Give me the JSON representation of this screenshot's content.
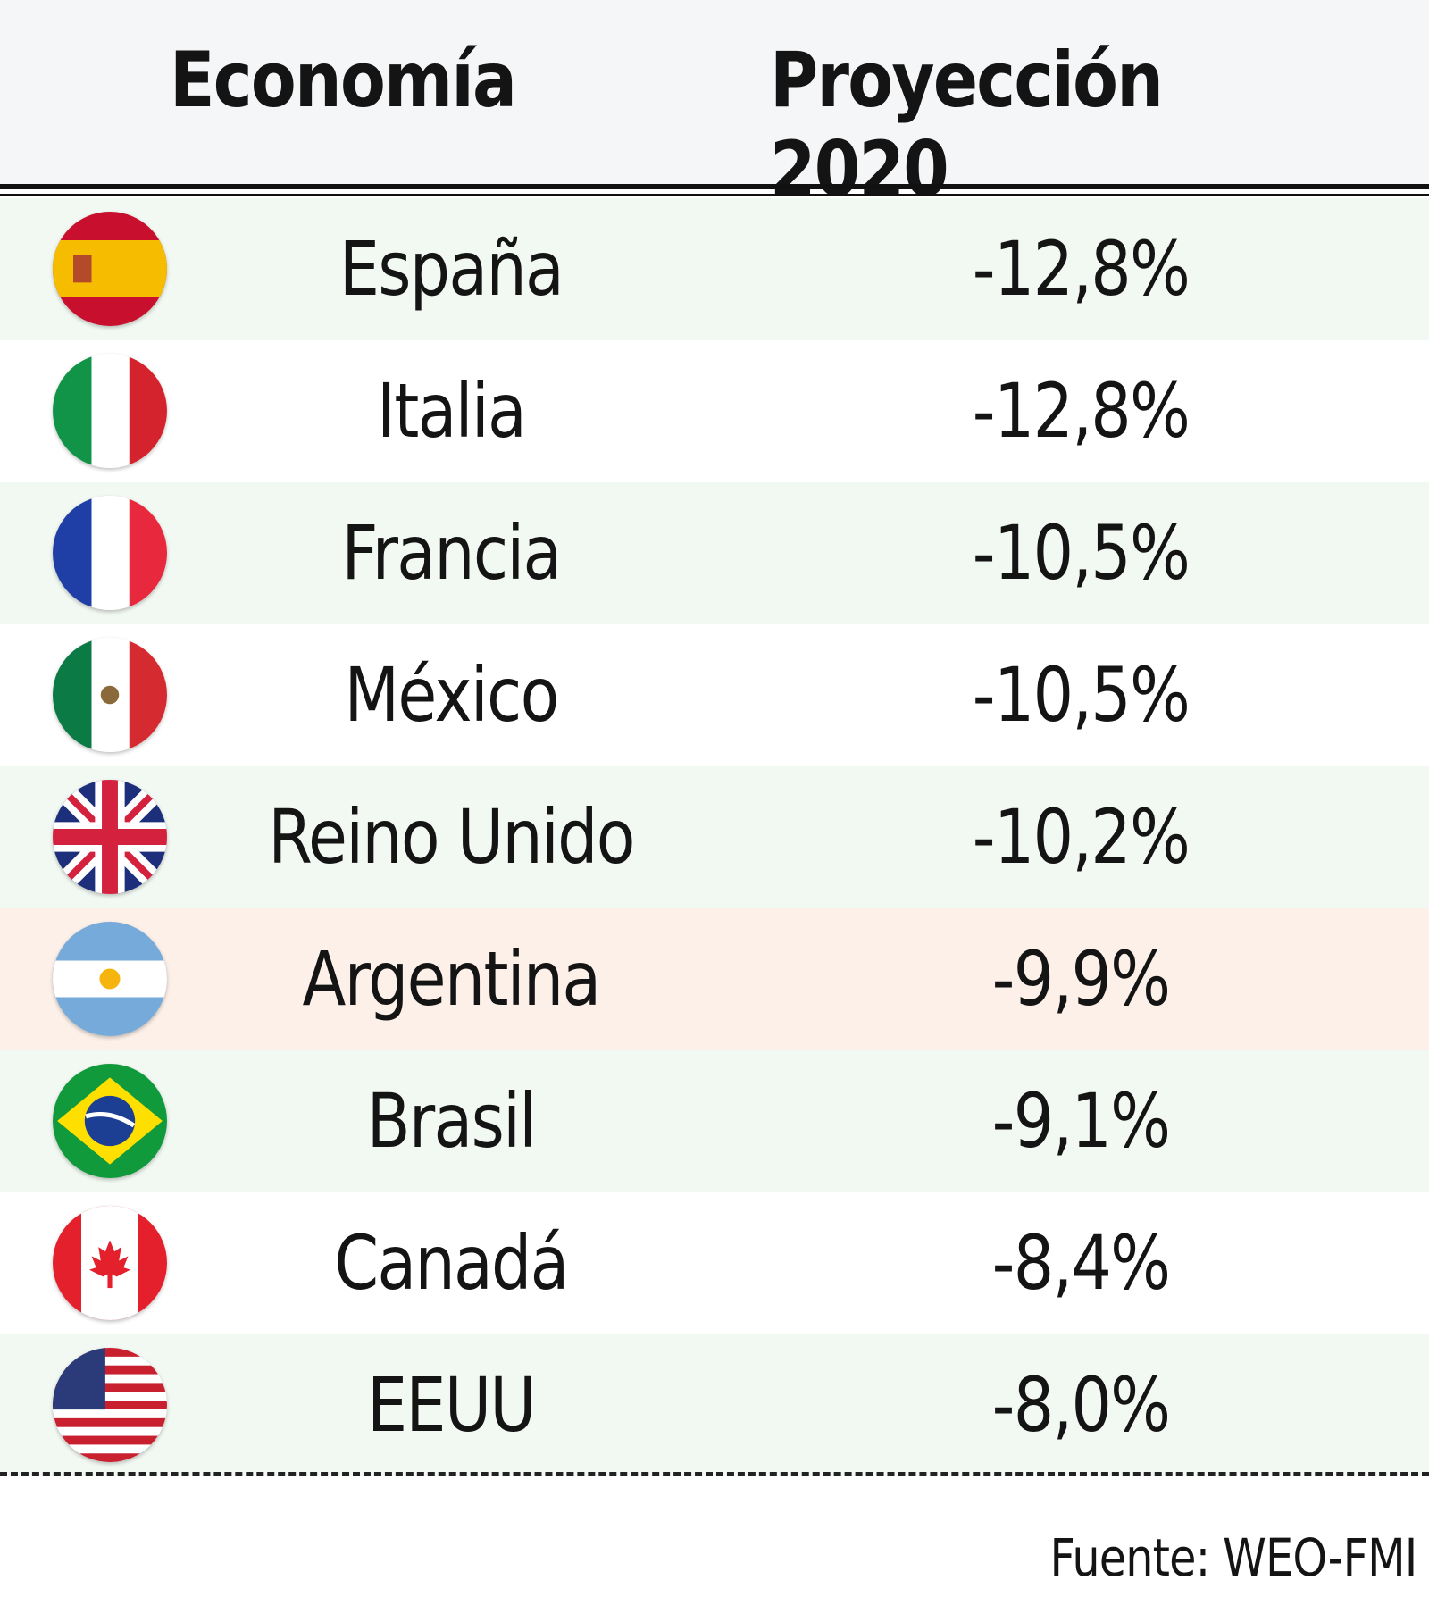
{
  "header": [
    "Economía",
    "Proyección 2020"
  ],
  "rows": [
    [
      "España",
      "-12,8%"
    ],
    [
      "Italia",
      "-12,8%"
    ],
    [
      "Francia",
      "-10,5%"
    ],
    [
      "México",
      "-10,5%"
    ],
    [
      "Reino Unido",
      "-10,2%"
    ],
    [
      "Argentina",
      "-9,9%"
    ],
    [
      "Brasil",
      "-9,1%"
    ],
    [
      "Canadá",
      "-8,4%"
    ],
    [
      "EEUU",
      "-8,0%"
    ]
  ],
  "source": "Fuente: WEO-FMI"
}
